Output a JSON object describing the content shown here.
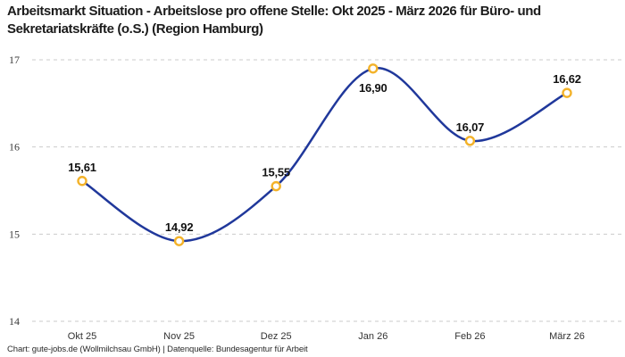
{
  "chart_data": {
    "type": "line",
    "title": "Arbeitsmarkt Situation - Arbeitslose pro offene Stelle: Okt 2025 - März 2026 für Büro- und Sekretariatskräfte (o.S.) (Region Hamburg)",
    "categories": [
      "Okt 25",
      "Nov 25",
      "Dez 25",
      "Jan 26",
      "Feb 26",
      "März 26"
    ],
    "values": [
      15.61,
      14.92,
      15.55,
      16.9,
      16.07,
      16.62
    ],
    "value_labels": [
      "15,61",
      "14,92",
      "15,55",
      "16,90",
      "16,07",
      "16,62"
    ],
    "series_name": "Arbeitslose pro offene Stelle",
    "xlabel": "",
    "ylabel": "",
    "ylim": [
      14,
      17
    ],
    "yticks": [
      17,
      16,
      15,
      14
    ],
    "grid": "horizontal-dashed",
    "legend": "none",
    "colors": {
      "line": "#20389b",
      "marker_ring": "#f3b229",
      "marker_fill": "#ffffff",
      "gridline": "#cbcbcb",
      "title_text": "#1c1c1c",
      "tick_text": "#3a3a3a",
      "label_text": "#111111"
    }
  },
  "footer": {
    "credit": "Chart: gute-jobs.de (Wollmilchsau GmbH) | Datenquelle: Bundesagentur für Arbeit"
  }
}
